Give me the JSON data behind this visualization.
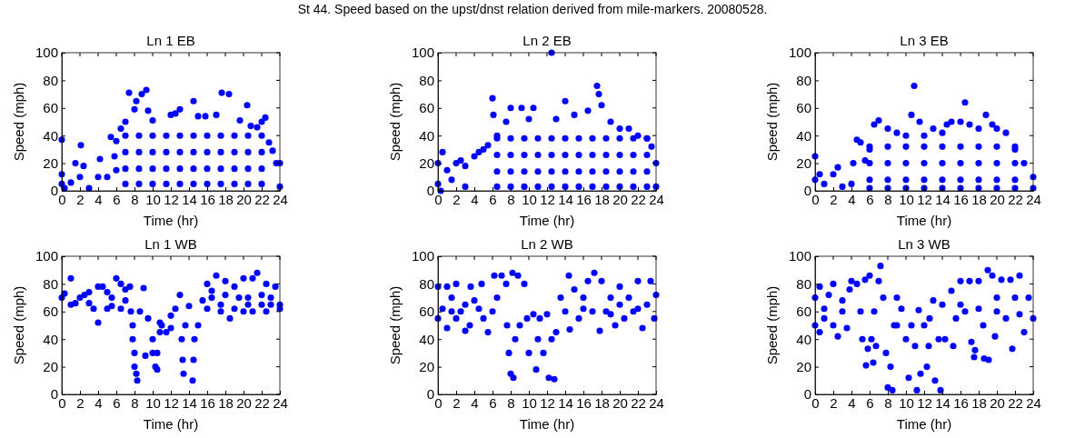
{
  "chart_data": [
    {
      "type": "scatter",
      "title": "Ln 1 EB",
      "xlabel": "Time (hr)",
      "ylabel": "Speed (mph)",
      "annotations": [
        "St 44.  Speed based on the upst/dnst relation derived from mile-markers.  20080528."
      ],
      "color": "#0000ff",
      "marker": "circle",
      "xlim": [
        0,
        24
      ],
      "ylim": [
        0,
        100
      ],
      "xticks": [
        0,
        2,
        4,
        6,
        8,
        10,
        12,
        14,
        16,
        18,
        20,
        22,
        24
      ],
      "yticks": [
        0,
        20,
        40,
        60,
        80,
        100
      ],
      "x": [
        0,
        0,
        0,
        0.3,
        1,
        1.5,
        2,
        2.1,
        2.4,
        3,
        4,
        4.2,
        5,
        5.4,
        5.8,
        6,
        6,
        6.5,
        7,
        7.4,
        8,
        8.2,
        8.8,
        9.3,
        9.5,
        10,
        12,
        12.5,
        13,
        14.5,
        15,
        15.8,
        17,
        17.6,
        18.4,
        19.6,
        20.4,
        20.8,
        21.5,
        22,
        22.4,
        22.8,
        23.2,
        23.6,
        24,
        24,
        7,
        7,
        7,
        7,
        8.5,
        8.5,
        8.5,
        8.5,
        10,
        10,
        10,
        10,
        11.5,
        11.5,
        11.5,
        11.5,
        13,
        13,
        13,
        13,
        14.5,
        14.5,
        14.5,
        14.5,
        16,
        16,
        16,
        16,
        17.5,
        17.5,
        17.5,
        17.5,
        19,
        19,
        19,
        19,
        20.5,
        20.5,
        20.5,
        20.5,
        22,
        22,
        22,
        22
      ],
      "values": [
        37,
        12,
        5,
        2,
        6,
        20,
        10,
        33,
        18,
        2,
        10,
        23,
        10,
        39,
        25,
        36,
        15,
        45,
        50,
        71,
        59,
        65,
        70,
        73,
        58,
        51,
        55,
        56,
        59,
        65,
        54,
        54,
        55,
        71,
        70,
        51,
        62,
        47,
        46,
        50,
        53,
        35,
        29,
        20,
        20,
        3,
        40,
        28,
        16,
        5,
        40,
        28,
        16,
        5,
        40,
        28,
        16,
        5,
        40,
        28,
        16,
        5,
        40,
        28,
        16,
        5,
        40,
        28,
        16,
        5,
        40,
        28,
        16,
        5,
        40,
        28,
        16,
        5,
        40,
        28,
        16,
        5,
        40,
        28,
        16,
        5,
        40,
        28,
        16,
        5
      ]
    },
    {
      "type": "scatter",
      "title": "Ln 2 EB",
      "xlabel": "Time (hr)",
      "ylabel": "Speed (mph)",
      "color": "#0000ff",
      "marker": "circle",
      "xlim": [
        0,
        24
      ],
      "ylim": [
        0,
        100
      ],
      "xticks": [
        0,
        2,
        4,
        6,
        8,
        10,
        12,
        14,
        16,
        18,
        20,
        22,
        24
      ],
      "yticks": [
        0,
        20,
        40,
        60,
        80,
        100
      ],
      "x": [
        0,
        0,
        0.5,
        1,
        1.5,
        2,
        2.5,
        3,
        4,
        4.5,
        5,
        5.5,
        6,
        6.1,
        6.5,
        7.5,
        8,
        9.2,
        10,
        10.5,
        12.5,
        13,
        14,
        15,
        16.5,
        17.5,
        17.7,
        18,
        19,
        20,
        21,
        22,
        23,
        23.5,
        24,
        24,
        0.3,
        3,
        6.5,
        6.5,
        6.5,
        6.5,
        8,
        8,
        8,
        8,
        9.5,
        9.5,
        9.5,
        9.5,
        11,
        11,
        11,
        11,
        12.5,
        12.5,
        12.5,
        12.5,
        14,
        14,
        14,
        14,
        15.5,
        15.5,
        15.5,
        15.5,
        17,
        17,
        17,
        17,
        18.5,
        18.5,
        18.5,
        18.5,
        20,
        20,
        20,
        20,
        21.5,
        21.5,
        21.5,
        21.5,
        23,
        23,
        23,
        23
      ],
      "values": [
        20,
        5,
        28,
        15,
        8,
        20,
        22,
        18,
        25,
        28,
        30,
        33,
        67,
        55,
        40,
        50,
        60,
        60,
        52,
        60,
        100,
        52,
        65,
        55,
        58,
        76,
        70,
        62,
        50,
        45,
        45,
        40,
        38,
        32,
        20,
        3,
        0,
        3,
        38,
        26,
        14,
        3,
        38,
        26,
        14,
        3,
        38,
        26,
        14,
        3,
        38,
        26,
        14,
        3,
        38,
        26,
        14,
        3,
        38,
        26,
        14,
        3,
        38,
        26,
        14,
        3,
        38,
        26,
        14,
        3,
        38,
        26,
        14,
        3,
        38,
        26,
        14,
        3,
        38,
        26,
        14,
        3,
        38,
        26,
        14,
        3
      ]
    },
    {
      "type": "scatter",
      "title": "Ln 3 EB",
      "xlabel": "Time (hr)",
      "ylabel": "Speed (mph)",
      "color": "#0000ff",
      "marker": "circle",
      "xlim": [
        0,
        24
      ],
      "ylim": [
        0,
        100
      ],
      "xticks": [
        0,
        2,
        4,
        6,
        8,
        10,
        12,
        14,
        16,
        18,
        20,
        22,
        24
      ],
      "yticks": [
        0,
        20,
        40,
        60,
        80,
        100
      ],
      "x": [
        0,
        0,
        0.5,
        1,
        2,
        2.5,
        3,
        4,
        4.2,
        4.6,
        5,
        5.5,
        6,
        6.5,
        7,
        8,
        9,
        10,
        10.6,
        10.9,
        11.5,
        12,
        13,
        14,
        14.5,
        15,
        16,
        16.5,
        17,
        18,
        18.8,
        19.5,
        20,
        21,
        22,
        23,
        24,
        24,
        6,
        6,
        6,
        6,
        8,
        8,
        8,
        8,
        10,
        10,
        10,
        10,
        12,
        12,
        12,
        12,
        14,
        14,
        14,
        14,
        16,
        16,
        16,
        16,
        18,
        18,
        18,
        18,
        20,
        20,
        20,
        20,
        22,
        22,
        22,
        22
      ],
      "values": [
        25,
        8,
        12,
        5,
        12,
        17,
        3,
        5,
        20,
        37,
        35,
        22,
        30,
        48,
        51,
        45,
        42,
        40,
        55,
        76,
        50,
        40,
        45,
        42,
        48,
        50,
        50,
        64,
        48,
        45,
        55,
        48,
        45,
        42,
        30,
        20,
        10,
        2,
        32,
        20,
        8,
        2,
        32,
        20,
        8,
        2,
        32,
        20,
        8,
        2,
        32,
        20,
        8,
        2,
        32,
        20,
        8,
        2,
        32,
        20,
        8,
        2,
        32,
        20,
        8,
        2,
        32,
        20,
        8,
        2,
        32,
        20,
        8,
        2
      ]
    },
    {
      "type": "scatter",
      "title": "Ln 1 WB",
      "xlabel": "Time (hr)",
      "ylabel": "Speed (mph)",
      "color": "#0000ff",
      "marker": "circle",
      "xlim": [
        0,
        24
      ],
      "ylim": [
        0,
        100
      ],
      "xticks": [
        0,
        2,
        4,
        6,
        8,
        10,
        12,
        14,
        16,
        18,
        20,
        22,
        24
      ],
      "yticks": [
        0,
        20,
        40,
        60,
        80,
        100
      ],
      "x": [
        0,
        0.3,
        1,
        1,
        2,
        2.5,
        3,
        3.5,
        4,
        4,
        4.5,
        5,
        5.5,
        6,
        6.5,
        7,
        7.5,
        7.6,
        7.8,
        8,
        8.2,
        8.3,
        8.6,
        9,
        9.2,
        9.5,
        10,
        10.3,
        10.5,
        10.8,
        11,
        12,
        12.5,
        13,
        13.2,
        13.4,
        13.6,
        14,
        14.4,
        14.6,
        15,
        15.5,
        16,
        16.5,
        17,
        17.5,
        18,
        18.5,
        19,
        20,
        20.5,
        21,
        21.5,
        22,
        22.5,
        23,
        23.5,
        24,
        24,
        1.5,
        3,
        5,
        5.5,
        6.5,
        7,
        16,
        16.5,
        17.5,
        18,
        19,
        19.5,
        20,
        20.5,
        21,
        22,
        22.5,
        23,
        7.8,
        8,
        10,
        10.5,
        13.3,
        14.5,
        11.5,
        12,
        10.8
      ],
      "values": [
        70,
        73,
        84,
        65,
        70,
        72,
        74,
        62,
        52,
        78,
        78,
        74,
        64,
        84,
        80,
        76,
        78,
        60,
        50,
        30,
        15,
        10,
        60,
        77,
        28,
        55,
        40,
        20,
        18,
        45,
        50,
        57,
        62,
        72,
        40,
        15,
        50,
        64,
        10,
        40,
        50,
        68,
        80,
        75,
        86,
        60,
        82,
        55,
        78,
        84,
        70,
        84,
        88,
        72,
        80,
        65,
        78,
        65,
        62,
        66,
        66,
        62,
        70,
        62,
        68,
        62,
        70,
        65,
        72,
        62,
        70,
        60,
        65,
        60,
        65,
        60,
        70,
        40,
        20,
        30,
        30,
        25,
        25,
        45,
        48,
        52
      ]
    },
    {
      "type": "scatter",
      "title": "Ln 2 WB",
      "xlabel": "Time (hr)",
      "ylabel": "Speed (mph)",
      "color": "#0000ff",
      "marker": "circle",
      "xlim": [
        0,
        24
      ],
      "ylim": [
        0,
        100
      ],
      "xticks": [
        0,
        2,
        4,
        6,
        8,
        10,
        12,
        14,
        16,
        18,
        20,
        22,
        24
      ],
      "yticks": [
        0,
        20,
        40,
        60,
        80,
        100
      ],
      "x": [
        0,
        0,
        0.5,
        1,
        1,
        1.5,
        2,
        2,
        2.5,
        3,
        3.5,
        3.6,
        4,
        4.8,
        5,
        5.5,
        6,
        6.2,
        6.5,
        7,
        7.5,
        7.6,
        7.8,
        8,
        8.2,
        8.3,
        8.5,
        8.8,
        9,
        9.5,
        9.8,
        10,
        10.5,
        10.8,
        11,
        11.2,
        11.6,
        12,
        12.2,
        12.5,
        12.8,
        13,
        13.5,
        14,
        14.4,
        14.5,
        15,
        15.5,
        16,
        16.5,
        17,
        17.2,
        17.8,
        18,
        18.5,
        19,
        19.5,
        20,
        20.5,
        21,
        21.5,
        22,
        22.5,
        23,
        23.4,
        23.8,
        24,
        1.5,
        3,
        4.5,
        16,
        19,
        22,
        20
      ],
      "values": [
        78,
        55,
        62,
        78,
        48,
        70,
        80,
        55,
        60,
        46,
        50,
        78,
        68,
        80,
        55,
        45,
        60,
        86,
        70,
        86,
        80,
        50,
        30,
        15,
        88,
        12,
        40,
        86,
        50,
        80,
        55,
        30,
        58,
        18,
        40,
        55,
        30,
        58,
        12,
        40,
        11,
        45,
        70,
        60,
        86,
        47,
        76,
        55,
        70,
        82,
        60,
        88,
        46,
        82,
        60,
        70,
        50,
        78,
        55,
        70,
        60,
        82,
        48,
        65,
        82,
        55,
        72,
        60,
        65,
        62,
        62,
        58,
        62,
        65
      ]
    },
    {
      "type": "scatter",
      "title": "Ln 3 WB",
      "xlabel": "Time (hr)",
      "ylabel": "Speed (mph)",
      "color": "#0000ff",
      "marker": "circle",
      "xlim": [
        0,
        24
      ],
      "ylim": [
        0,
        100
      ],
      "xticks": [
        0,
        2,
        4,
        6,
        8,
        10,
        12,
        14,
        16,
        18,
        20,
        22,
        24
      ],
      "yticks": [
        0,
        20,
        40,
        60,
        80,
        100
      ],
      "x": [
        0,
        0,
        0.5,
        0.5,
        1,
        1.5,
        2,
        2,
        2.5,
        3,
        3.5,
        3.8,
        4,
        4.6,
        5,
        5.2,
        5.5,
        5.6,
        5.8,
        6,
        6.2,
        6.4,
        6.5,
        6.7,
        7,
        7.2,
        7.5,
        7.8,
        8,
        8.3,
        8.5,
        8.7,
        9,
        9.5,
        10,
        10.3,
        10.6,
        11,
        11.2,
        11.4,
        11.6,
        12,
        12.3,
        12.6,
        13,
        13.2,
        13.6,
        13.8,
        14,
        14.3,
        15,
        15.2,
        15.5,
        16,
        16.5,
        17,
        17.2,
        17.5,
        17.6,
        18,
        18.5,
        18.6,
        19,
        19.1,
        19.5,
        19.8,
        20,
        20.5,
        21,
        21.5,
        21.7,
        22,
        22.5,
        23,
        23.5,
        24,
        1,
        3,
        16,
        18,
        20,
        22.5,
        9,
        12.5
      ],
      "values": [
        70,
        50,
        78,
        45,
        62,
        72,
        80,
        50,
        42,
        60,
        48,
        76,
        82,
        80,
        60,
        40,
        83,
        21,
        33,
        86,
        40,
        23,
        60,
        35,
        82,
        93,
        70,
        30,
        5,
        20,
        3,
        50,
        70,
        62,
        40,
        12,
        50,
        35,
        3,
        61,
        15,
        50,
        20,
        55,
        68,
        10,
        40,
        3,
        65,
        40,
        75,
        35,
        55,
        82,
        60,
        82,
        38,
        27,
        32,
        82,
        50,
        26,
        90,
        25,
        86,
        42,
        70,
        83,
        55,
        83,
        33,
        70,
        86,
        45,
        70,
        55,
        55,
        68,
        65,
        62,
        60,
        58,
        50,
        35
      ]
    }
  ]
}
